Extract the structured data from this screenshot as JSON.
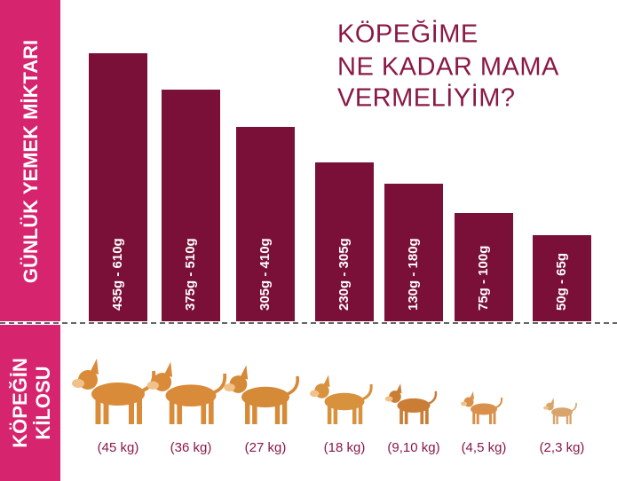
{
  "title": [
    "KÖPEĞİME",
    "NE KADAR MAMA",
    "VERMELİYİM?"
  ],
  "amount_label": "GÜNLÜK YEMEK MİKTARI",
  "weight_label": [
    "KÖPEĞİN",
    "KİLOSU"
  ],
  "items": [
    {
      "amount": "435g - 610g",
      "weight": "(45 kg)"
    },
    {
      "amount": "375g - 510g",
      "weight": "(36 kg)"
    },
    {
      "amount": "305g - 410g",
      "weight": "(27 kg)"
    },
    {
      "amount": "230g - 305g",
      "weight": "(18 kg)"
    },
    {
      "amount": "130g - 180g",
      "weight": "(9,10 kg)"
    },
    {
      "amount": "75g - 100g",
      "weight": "(4,5 kg)"
    },
    {
      "amount": "50g - 65g",
      "weight": "(2,3 kg)"
    }
  ]
}
